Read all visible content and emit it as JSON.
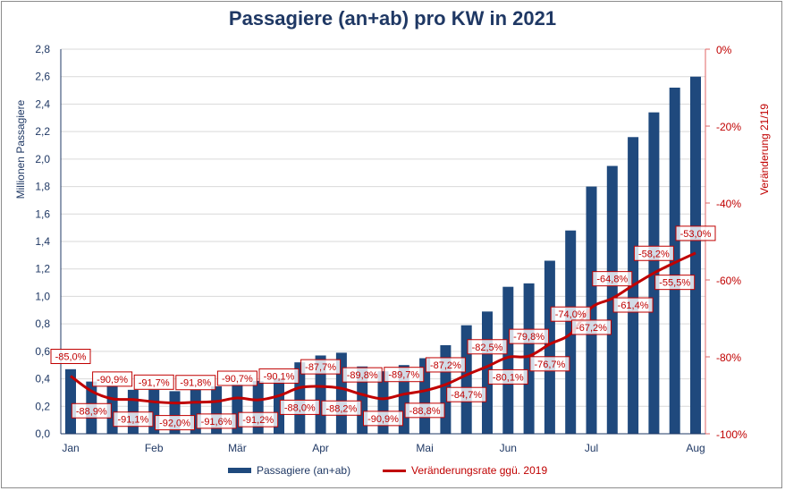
{
  "chart_data": {
    "type": "bar+line",
    "title": "Passagiere (an+ab) pro KW in 2021",
    "ylabel": "Millionen Passagiere",
    "y2label": "Veränderung 21/19",
    "ylim": [
      0,
      2.8
    ],
    "y2lim": [
      -100,
      0
    ],
    "yticks": [
      "0,0",
      "0,2",
      "0,4",
      "0,6",
      "0,8",
      "1,0",
      "1,2",
      "1,4",
      "1,6",
      "1,8",
      "2,0",
      "2,2",
      "2,4",
      "2,6",
      "2,8"
    ],
    "y2ticks": [
      "-100%",
      "-80%",
      "-60%",
      "-40%",
      "-20%",
      "0%"
    ],
    "xticks": [
      {
        "index": 0,
        "label": "Jan"
      },
      {
        "index": 4,
        "label": "Feb"
      },
      {
        "index": 8,
        "label": "Mär"
      },
      {
        "index": 12,
        "label": "Apr"
      },
      {
        "index": 17,
        "label": "Mai"
      },
      {
        "index": 21,
        "label": "Jun"
      },
      {
        "index": 25,
        "label": "Jul"
      },
      {
        "index": 30,
        "label": "Aug"
      }
    ],
    "grid": true,
    "legend": "bottom",
    "series": [
      {
        "name": "Passagiere (an+ab)",
        "kind": "bar",
        "axis": "left",
        "color": "#1f497d",
        "values": [
          0.47,
          0.38,
          0.35,
          0.32,
          0.32,
          0.31,
          0.32,
          0.345,
          0.36,
          0.385,
          0.4,
          0.52,
          0.57,
          0.59,
          0.49,
          0.455,
          0.5,
          0.55,
          0.645,
          0.79,
          0.89,
          1.07,
          1.095,
          1.26,
          1.48,
          1.8,
          1.95,
          2.16,
          2.34,
          2.52,
          2.6
        ]
      },
      {
        "name": "Veränderungsrate ggü. 2019",
        "kind": "line",
        "axis": "right",
        "color": "#c00000",
        "values": [
          -85.0,
          -88.9,
          -90.9,
          -91.1,
          -91.7,
          -92.0,
          -91.8,
          -91.6,
          -90.7,
          -91.2,
          -90.1,
          -88.0,
          -87.7,
          -88.2,
          -89.8,
          -90.9,
          -89.7,
          -88.8,
          -87.2,
          -84.7,
          -82.5,
          -80.1,
          -79.8,
          -76.7,
          -74.0,
          -67.2,
          -64.8,
          -61.4,
          -58.2,
          -55.5,
          -53.0
        ],
        "data_labels": [
          "-85,0%",
          "-88,9%",
          "-90,9%",
          "-91,1%",
          "-91,7%",
          "-92,0%",
          "-91,8%",
          "-91,6%",
          "-90,7%",
          "-91,2%",
          "-90,1%",
          "-88,0%",
          "-87,7%",
          "-88,2%",
          "-89,8%",
          "-90,9%",
          "-89,7%",
          "-88,8%",
          "-87,2%",
          "-84,7%",
          "-82,5%",
          "-80,1%",
          "-79,8%",
          "-76,7%",
          "-74,0%",
          "-67,2%",
          "-64,8%",
          "-61,4%",
          "-58,2%",
          "-55,5%",
          "-53,0%"
        ]
      }
    ]
  }
}
